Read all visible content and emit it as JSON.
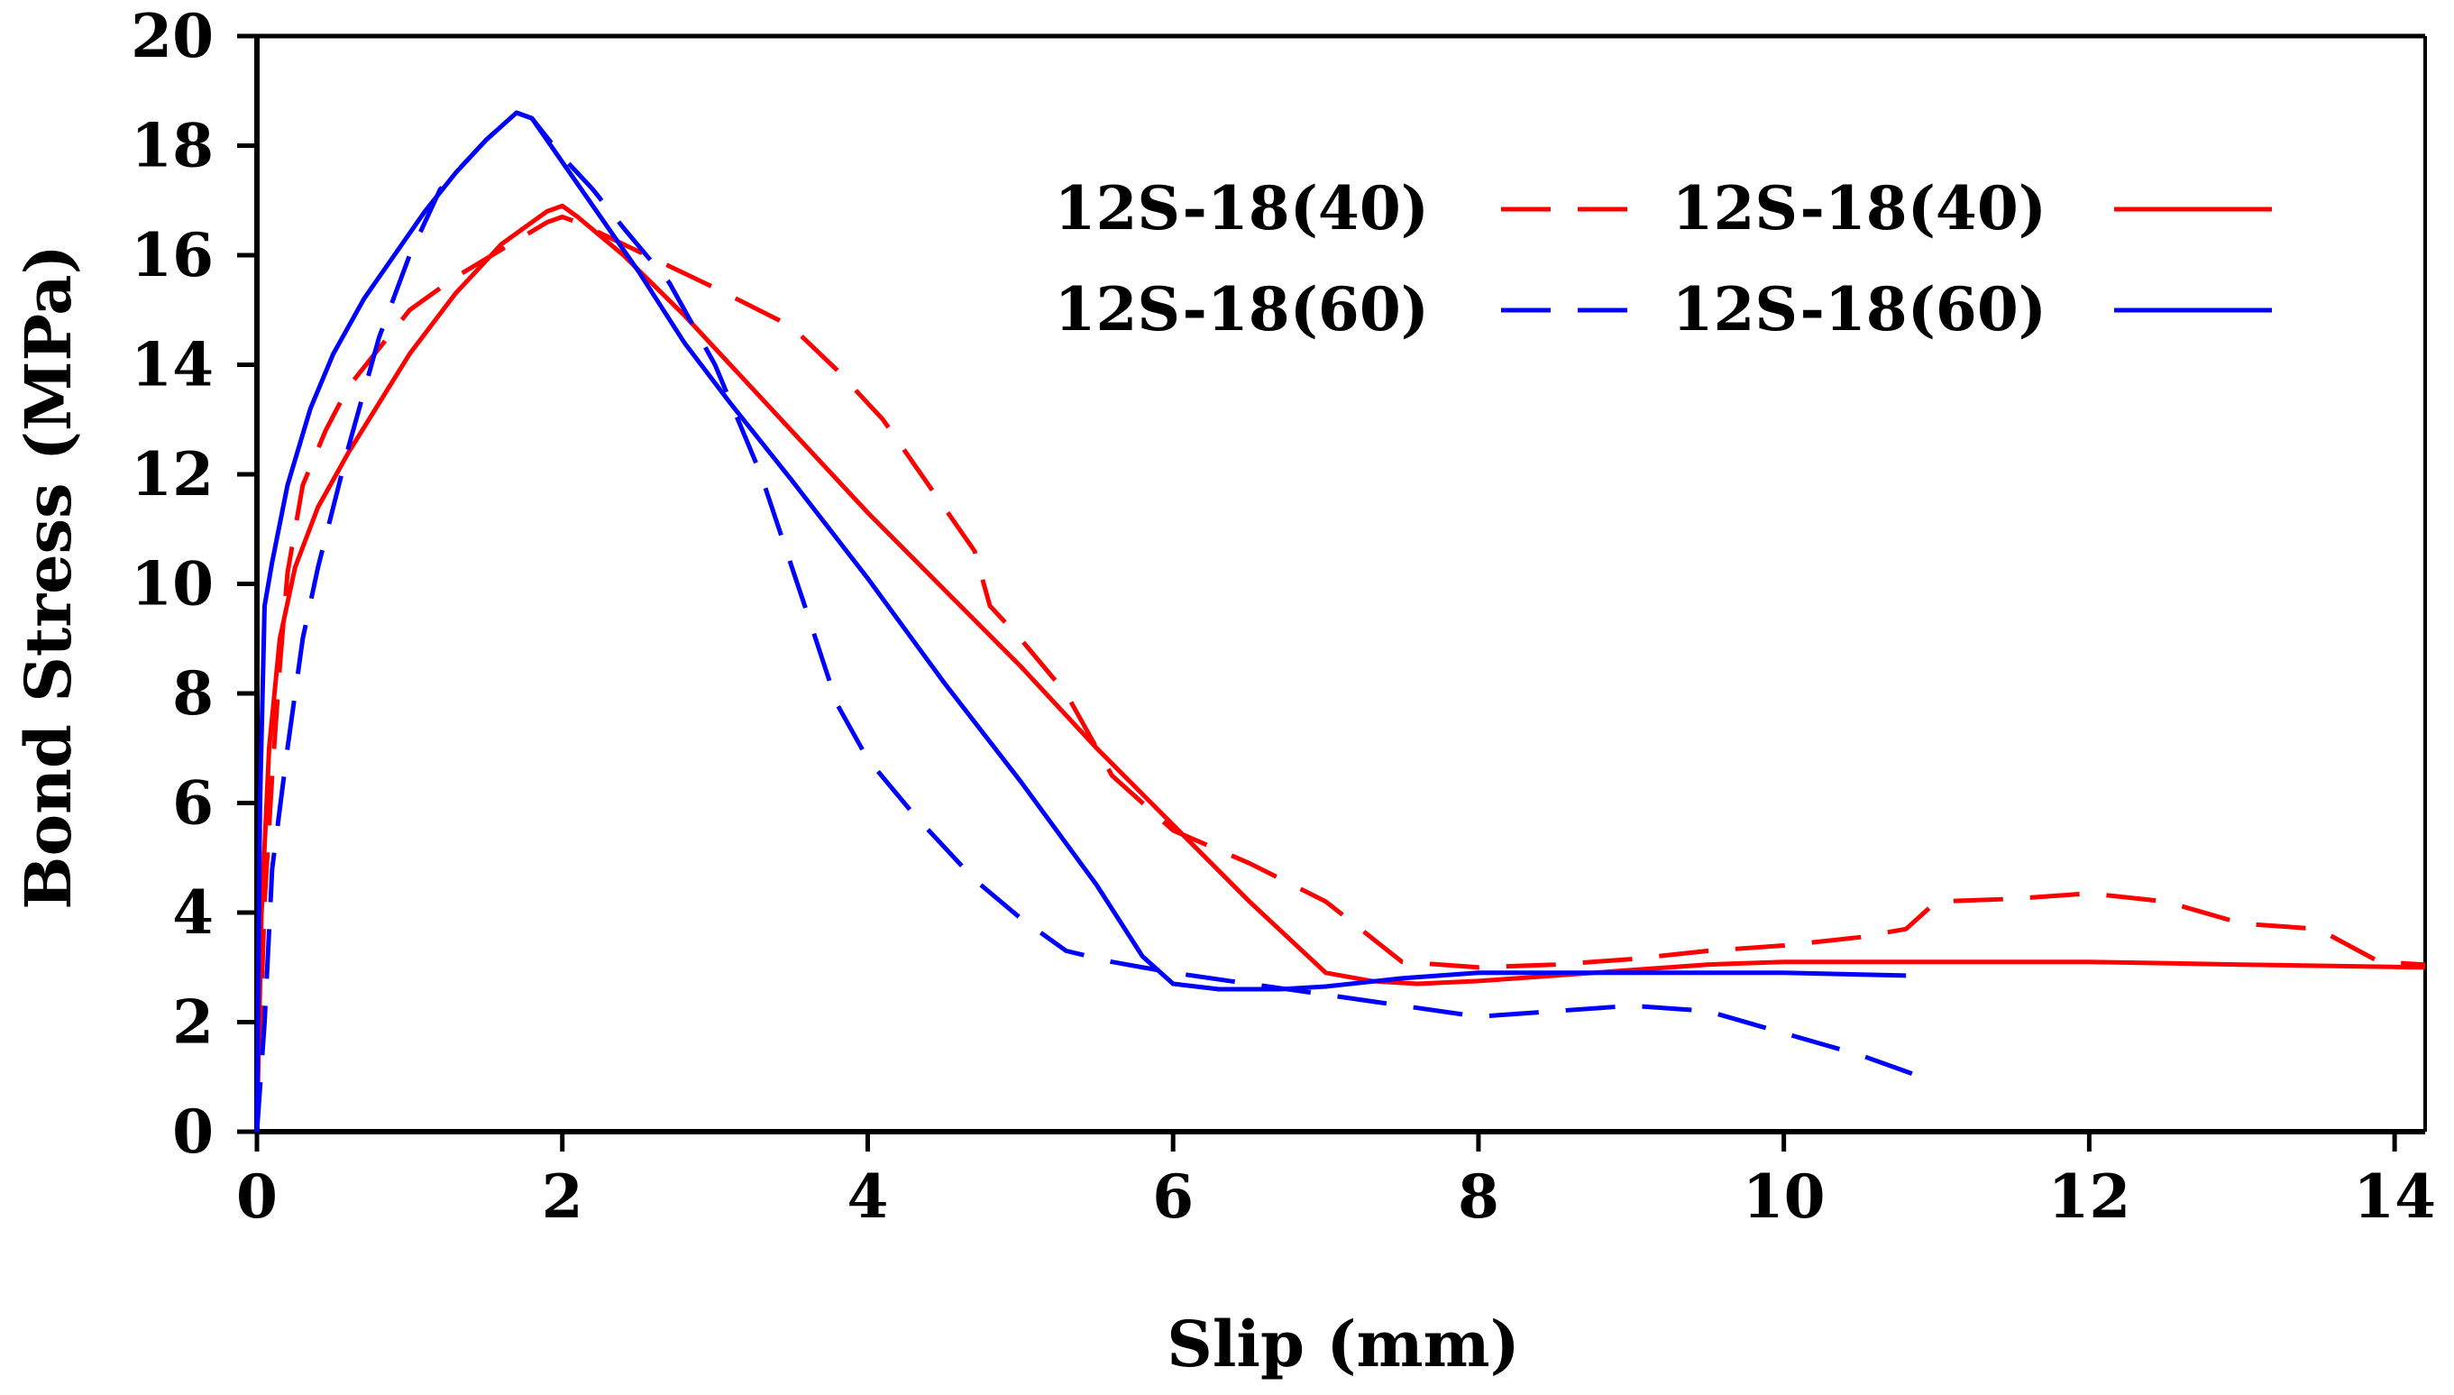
{
  "chart_data": {
    "type": "line",
    "title": "",
    "xlabel": "Slip (mm)",
    "ylabel": "Bond Stress (MPa)",
    "xlim": [
      0,
      14.2
    ],
    "ylim": [
      0,
      20
    ],
    "xticks": [
      0,
      2,
      4,
      6,
      8,
      10,
      12,
      14
    ],
    "yticks": [
      0,
      2,
      4,
      6,
      8,
      10,
      12,
      14,
      16,
      18,
      20
    ],
    "legend_position": "top-right",
    "series": [
      {
        "name": "12S-18(40)",
        "style": "dashed",
        "color": "#ff0000",
        "x": [
          0,
          0.05,
          0.1,
          0.15,
          0.2,
          0.3,
          0.45,
          0.6,
          0.8,
          1.0,
          1.3,
          1.6,
          1.9,
          2.0,
          2.1,
          2.4,
          2.7,
          3.0,
          3.5,
          3.8,
          4.1,
          4.3,
          4.6,
          4.7,
          4.8,
          5.0,
          5.3,
          5.6,
          6.0,
          6.5,
          7.0,
          7.5,
          8.0,
          8.5,
          9.0,
          9.5,
          10.0,
          10.5,
          10.8,
          11.0,
          11.5,
          12.0,
          12.5,
          13.0,
          13.5,
          13.9,
          14.2
        ],
        "values": [
          0,
          4.2,
          6.5,
          8.5,
          10.2,
          11.8,
          12.8,
          13.6,
          14.3,
          15.0,
          15.6,
          16.1,
          16.6,
          16.7,
          16.6,
          16.2,
          15.8,
          15.4,
          14.7,
          13.9,
          13.0,
          12.2,
          11.0,
          10.6,
          9.6,
          9.0,
          8.0,
          6.5,
          5.5,
          4.9,
          4.2,
          3.1,
          3.0,
          3.05,
          3.15,
          3.3,
          3.4,
          3.55,
          3.7,
          4.2,
          4.25,
          4.35,
          4.2,
          3.8,
          3.7,
          3.1,
          3.05
        ]
      },
      {
        "name": "12S-18(40)",
        "style": "solid",
        "color": "#ff0000",
        "x": [
          0,
          0.03,
          0.08,
          0.15,
          0.25,
          0.4,
          0.6,
          0.8,
          1.0,
          1.3,
          1.6,
          1.9,
          2.0,
          2.1,
          2.4,
          2.8,
          3.2,
          3.6,
          4.0,
          4.5,
          5.0,
          5.5,
          6.0,
          6.5,
          7.0,
          7.3,
          7.6,
          8.0,
          8.5,
          9.0,
          9.5,
          10.0,
          11.0,
          12.0,
          13.0,
          14.2
        ],
        "values": [
          0,
          4.0,
          7.0,
          9.0,
          10.3,
          11.4,
          12.4,
          13.3,
          14.2,
          15.3,
          16.2,
          16.8,
          16.9,
          16.7,
          16.0,
          14.9,
          13.7,
          12.5,
          11.3,
          9.9,
          8.5,
          7.0,
          5.6,
          4.2,
          2.9,
          2.75,
          2.7,
          2.75,
          2.85,
          2.95,
          3.05,
          3.1,
          3.1,
          3.1,
          3.05,
          3.0
        ]
      },
      {
        "name": "12S-18(60)",
        "style": "dashed",
        "color": "#0000ff",
        "x": [
          0,
          0.05,
          0.1,
          0.2,
          0.3,
          0.4,
          0.6,
          0.8,
          1.0,
          1.2,
          1.5,
          1.7,
          1.8,
          2.0,
          2.2,
          2.4,
          2.7,
          3.0,
          3.3,
          3.6,
          3.8,
          4.0,
          4.3,
          4.7,
          5.0,
          5.3,
          5.6,
          6.0,
          6.5,
          7.0,
          7.5,
          8.0,
          8.5,
          9.0,
          9.5,
          10.0,
          10.5,
          10.9
        ],
        "values": [
          0,
          2.0,
          4.8,
          7.0,
          9.0,
          10.3,
          12.5,
          14.5,
          16.0,
          17.2,
          18.1,
          18.6,
          18.5,
          17.8,
          17.2,
          16.5,
          15.5,
          14.0,
          12.0,
          9.5,
          7.8,
          6.8,
          5.8,
          4.6,
          3.9,
          3.3,
          3.1,
          2.9,
          2.7,
          2.5,
          2.3,
          2.1,
          2.2,
          2.3,
          2.2,
          1.8,
          1.4,
          1.0
        ]
      },
      {
        "name": "12S-18(60)",
        "style": "solid",
        "color": "#0000ff",
        "x": [
          0,
          0.02,
          0.05,
          0.1,
          0.2,
          0.35,
          0.5,
          0.7,
          0.9,
          1.1,
          1.3,
          1.5,
          1.7,
          1.8,
          2.0,
          2.2,
          2.5,
          2.8,
          3.1,
          3.5,
          4.0,
          4.5,
          5.0,
          5.5,
          5.8,
          6.0,
          6.3,
          6.7,
          7.0,
          7.5,
          8.0,
          9.0,
          10.0,
          10.8
        ],
        "values": [
          0,
          6.0,
          9.6,
          10.4,
          11.8,
          13.2,
          14.2,
          15.2,
          16.0,
          16.8,
          17.5,
          18.1,
          18.6,
          18.5,
          17.7,
          16.9,
          15.7,
          14.4,
          13.3,
          11.9,
          10.1,
          8.2,
          6.4,
          4.5,
          3.2,
          2.7,
          2.6,
          2.6,
          2.65,
          2.8,
          2.9,
          2.9,
          2.9,
          2.85
        ]
      }
    ]
  }
}
